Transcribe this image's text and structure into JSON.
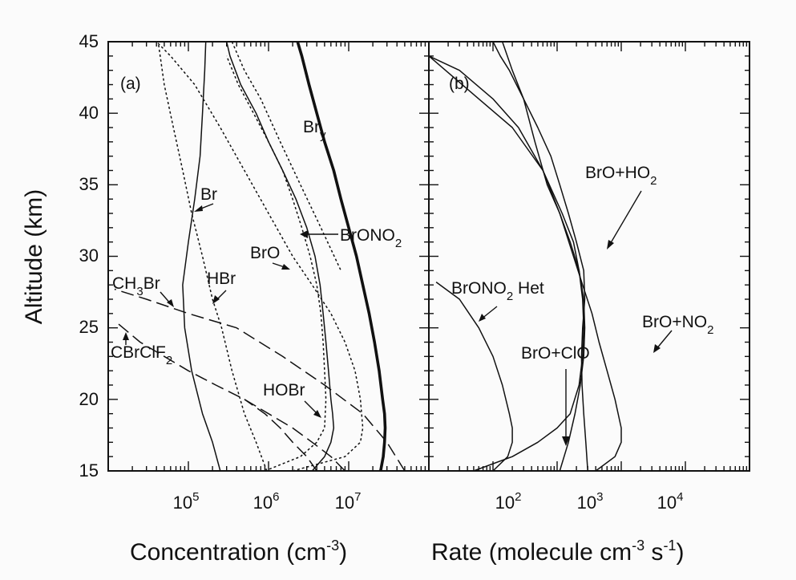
{
  "chart_data": [
    {
      "type": "line",
      "panel_label": "(a)",
      "xscale": "log",
      "xlim": [
        10000,
        100000000
      ],
      "ylim": [
        15,
        45
      ],
      "ylabel": "Altitude (km)",
      "xlabel": "Concentration (cm-3)",
      "xlabel_parts": {
        "main": "Concentration  (cm",
        "sup": "-3",
        "tail": ")"
      },
      "yticks": [
        "15",
        "20",
        "25",
        "30",
        "35",
        "40",
        "45"
      ],
      "xticks": [
        {
          "base": "10",
          "exp": "5"
        },
        {
          "base": "10",
          "exp": "6"
        },
        {
          "base": "10",
          "exp": "7"
        }
      ],
      "series": [
        {
          "name": "Bry",
          "style": "thick",
          "points": [
            [
              25000000,
              15
            ],
            [
              27000000,
              16
            ],
            [
              28000000,
              17
            ],
            [
              28500000,
              18
            ],
            [
              28000000,
              19
            ],
            [
              26500000,
              20
            ],
            [
              24000000,
              22
            ],
            [
              21000000,
              24
            ],
            [
              18000000,
              26
            ],
            [
              15000000,
              28
            ],
            [
              12500000,
              30
            ],
            [
              10000000,
              32
            ],
            [
              8000000,
              34
            ],
            [
              6500000,
              36
            ],
            [
              5000000,
              38
            ],
            [
              4000000,
              40
            ],
            [
              3200000,
              42
            ],
            [
              2600000,
              44
            ],
            [
              2300000,
              45
            ]
          ]
        },
        {
          "name": "BrONO2",
          "style": "solid",
          "points": [
            [
              3500000,
              15
            ],
            [
              5000000,
              16
            ],
            [
              6000000,
              17
            ],
            [
              6500000,
              18
            ],
            [
              6300000,
              19
            ],
            [
              6000000,
              20
            ],
            [
              5600000,
              22
            ],
            [
              5200000,
              24
            ],
            [
              4800000,
              26
            ],
            [
              4400000,
              28
            ],
            [
              3800000,
              30
            ],
            [
              3000000,
              32
            ],
            [
              2200000,
              34
            ],
            [
              1500000,
              36
            ],
            [
              1000000,
              38
            ],
            [
              700000,
              40
            ],
            [
              450000,
              42
            ],
            [
              330000,
              44
            ],
            [
              300000,
              45
            ]
          ]
        },
        {
          "name": "BrO",
          "style": "dotted",
          "points": [
            [
              900000,
              15
            ],
            [
              2500000,
              16
            ],
            [
              4000000,
              17
            ],
            [
              5000000,
              18
            ],
            [
              5200000,
              20
            ],
            [
              5000000,
              22
            ],
            [
              4800000,
              24
            ],
            [
              4500000,
              26
            ],
            [
              4000000,
              28
            ],
            [
              3300000,
              30
            ],
            [
              2600000,
              32
            ],
            [
              2000000,
              34
            ],
            [
              1500000,
              36
            ],
            [
              1000000,
              38
            ],
            [
              650000,
              40
            ],
            [
              420000,
              42
            ],
            [
              300000,
              44
            ]
          ]
        },
        {
          "name": "Br",
          "style": "solid",
          "points": [
            [
              250000,
              15
            ],
            [
              200000,
              17
            ],
            [
              150000,
              19
            ],
            [
              110000,
              22
            ],
            [
              90000,
              25
            ],
            [
              85000,
              28
            ],
            [
              100000,
              31
            ],
            [
              120000,
              34
            ],
            [
              140000,
              37
            ],
            [
              150000,
              40
            ],
            [
              160000,
              43
            ],
            [
              165000,
              45
            ]
          ]
        },
        {
          "name": "HBr",
          "style": "dotted",
          "points": [
            [
              950000,
              15
            ],
            [
              700000,
              17
            ],
            [
              500000,
              19
            ],
            [
              350000,
              22
            ],
            [
              260000,
              25
            ],
            [
              200000,
              27
            ],
            [
              150000,
              30
            ],
            [
              110000,
              33
            ],
            [
              85000,
              36
            ],
            [
              65000,
              39
            ],
            [
              50000,
              42
            ],
            [
              42000,
              45
            ]
          ]
        },
        {
          "name": "HOBr",
          "style": "dotted",
          "points": [
            [
              2000000,
              15
            ],
            [
              9000000,
              16
            ],
            [
              14000000,
              17
            ],
            [
              15000000,
              18
            ],
            [
              14000000,
              20
            ],
            [
              12000000,
              22
            ],
            [
              9000000,
              24
            ],
            [
              6000000,
              26
            ],
            [
              3500000,
              28
            ],
            [
              2000000,
              30
            ],
            [
              1000000,
              33
            ],
            [
              500000,
              36
            ],
            [
              250000,
              39
            ],
            [
              120000,
              42
            ],
            [
              60000,
              44
            ],
            [
              40000,
              45
            ]
          ]
        },
        {
          "name": "CH3Br",
          "style": "dashed",
          "points": [
            [
              50000000,
              15
            ],
            [
              30000000,
              17
            ],
            [
              15000000,
              19
            ],
            [
              5000000,
              21
            ],
            [
              1500000,
              23
            ],
            [
              400000,
              25
            ],
            [
              100000,
              26
            ],
            [
              30000,
              27
            ],
            [
              12000,
              27.7
            ]
          ]
        },
        {
          "name": "CBrClF2",
          "style": "dashed",
          "points": [
            [
              9000000,
              15
            ],
            [
              6000000,
              16
            ],
            [
              3500000,
              17
            ],
            [
              2000000,
              18
            ],
            [
              1000000,
              19
            ],
            [
              500000,
              20
            ],
            [
              220000,
              21
            ],
            [
              100000,
              22
            ],
            [
              50000,
              23
            ],
            [
              25000,
              24
            ],
            [
              12000,
              25.5
            ]
          ]
        },
        {
          "name": "",
          "style": "dashed",
          "points": [
            [
              4000000,
              15
            ],
            [
              3000000,
              16
            ],
            [
              2000000,
              17
            ],
            [
              1400000,
              18
            ],
            [
              900000,
              19
            ],
            [
              500000,
              20
            ]
          ]
        },
        {
          "name": "",
          "style": "dotted",
          "points": [
            [
              350000,
              45
            ],
            [
              500000,
              43
            ],
            [
              800000,
              41
            ],
            [
              1400000,
              38
            ],
            [
              2500000,
              35
            ],
            [
              4500000,
              32
            ],
            [
              8000000,
              29
            ]
          ]
        }
      ],
      "annotations": [
        {
          "text": "Bry",
          "main": "Br",
          "sub": "y"
        },
        {
          "text": "Br"
        },
        {
          "text": "BrONO2",
          "main": "BrONO",
          "sub": "2"
        },
        {
          "text": "BrO"
        },
        {
          "text": "HBr"
        },
        {
          "text": "CH3Br",
          "main": "CH",
          "sub": "3",
          "tail": "Br"
        },
        {
          "text": "CBrClF2",
          "main": "CBrClF",
          "sub": "2"
        },
        {
          "text": "HOBr"
        }
      ]
    },
    {
      "type": "line",
      "panel_label": "(b)",
      "xscale": "log",
      "xlim": [
        10,
        1000000
      ],
      "ylim": [
        15,
        45
      ],
      "xlabel": "Rate (molecule cm-3 s-1)",
      "xlabel_parts": {
        "main": "Rate  (molecule cm",
        "sup1": "-3",
        "mid": " s",
        "sup2": "-1",
        "tail": ")"
      },
      "xticks": [
        {
          "base": "10",
          "exp": "2"
        },
        {
          "base": "10",
          "exp": "3"
        },
        {
          "base": "10",
          "exp": "4"
        }
      ],
      "series": [
        {
          "name": "BrO+HO2",
          "style": "solid",
          "points": [
            [
              3000,
              15
            ],
            [
              2800,
              17
            ],
            [
              2600,
              19
            ],
            [
              2450,
              21
            ],
            [
              2400,
              23
            ],
            [
              2500,
              25
            ],
            [
              2700,
              27
            ],
            [
              2600,
              29
            ],
            [
              2000,
              31
            ],
            [
              1500,
              33
            ],
            [
              1100,
              35
            ],
            [
              800,
              37
            ],
            [
              500,
              39
            ],
            [
              300,
              41
            ],
            [
              180,
              43
            ],
            [
              130,
              44
            ],
            [
              100,
              45
            ]
          ]
        },
        {
          "name": "BrO+NO2",
          "style": "solid",
          "points": [
            [
              4000,
              15
            ],
            [
              8000,
              16
            ],
            [
              10000,
              17
            ],
            [
              10000,
              18
            ],
            [
              8000,
              20
            ],
            [
              6000,
              22
            ],
            [
              4500,
              24
            ],
            [
              3500,
              26
            ],
            [
              2500,
              28
            ],
            [
              1800,
              30
            ],
            [
              1100,
              33
            ],
            [
              700,
              35
            ],
            [
              450,
              38
            ],
            [
              300,
              41
            ],
            [
              200,
              43
            ],
            [
              140,
              45
            ]
          ]
        },
        {
          "name": "BrO+ClO",
          "style": "solid",
          "points": [
            [
              50,
              15
            ],
            [
              200,
              16
            ],
            [
              500,
              17
            ],
            [
              1000,
              18
            ],
            [
              1600,
              19
            ],
            [
              2200,
              21
            ],
            [
              2500,
              23
            ],
            [
              2600,
              25
            ],
            [
              2500,
              27
            ],
            [
              2200,
              29
            ],
            [
              1800,
              31
            ],
            [
              1200,
              33
            ],
            [
              600,
              36
            ],
            [
              200,
              39
            ],
            [
              60,
              41
            ],
            [
              10,
              44
            ]
          ]
        },
        {
          "name": "BrONO2 Het",
          "style": "solid",
          "points": [
            [
              100,
              15
            ],
            [
              170,
              16
            ],
            [
              200,
              17
            ],
            [
              200,
              18
            ],
            [
              180,
              19
            ],
            [
              140,
              21
            ],
            [
              100,
              23
            ],
            [
              60,
              25
            ],
            [
              30,
              27
            ],
            [
              13,
              28.2
            ]
          ]
        },
        {
          "name": "",
          "style": "solid",
          "points": [
            [
              1100,
              15
            ],
            [
              1500,
              17
            ],
            [
              1900,
              19
            ],
            [
              2300,
              21
            ],
            [
              2600,
              23
            ],
            [
              2700,
              25
            ],
            [
              2600,
              27
            ],
            [
              2200,
              29
            ],
            [
              1600,
              31
            ],
            [
              1100,
              33
            ],
            [
              600,
              36
            ],
            [
              250,
              39
            ],
            [
              100,
              41
            ],
            [
              30,
              43
            ],
            [
              10,
              44
            ]
          ]
        }
      ],
      "annotations": [
        {
          "text": "BrO+HO2",
          "main": "BrO+HO",
          "sub": "2"
        },
        {
          "text": "BrONO2 Het",
          "main": "BrONO",
          "sub": "2",
          "tail": " Het"
        },
        {
          "text": "BrO+NO2",
          "main": "BrO+NO",
          "sub": "2"
        },
        {
          "text": "BrO+ClO"
        }
      ]
    }
  ]
}
